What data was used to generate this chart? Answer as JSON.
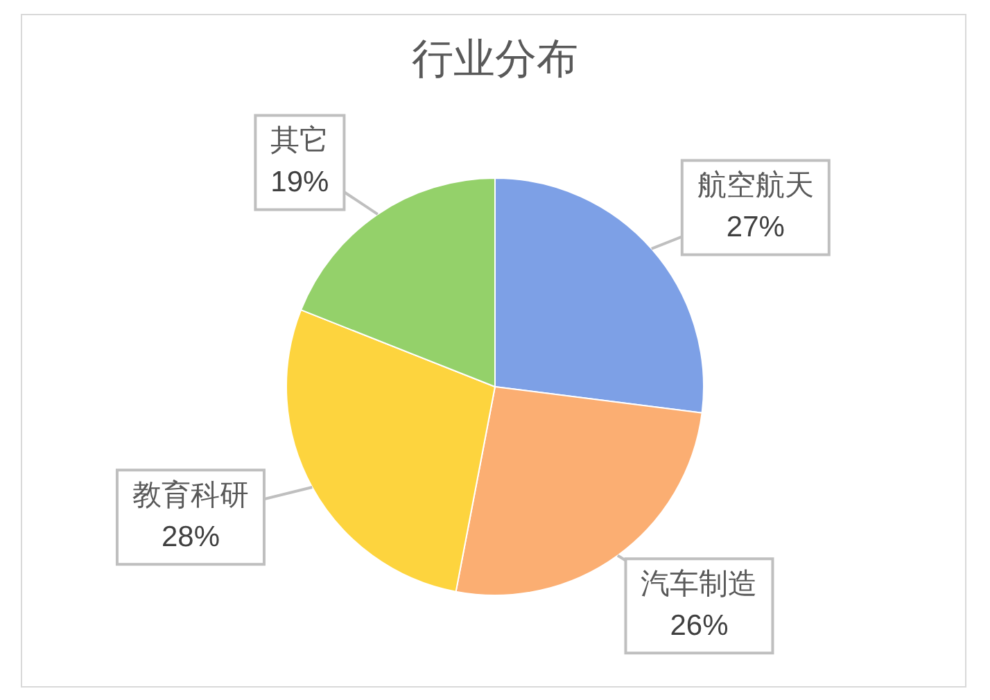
{
  "chart_data": {
    "type": "pie",
    "title": "行业分布",
    "categories": [
      "航空航天",
      "汽车制造",
      "教育科研",
      "其它"
    ],
    "values": [
      27,
      26,
      28,
      19
    ],
    "colors": [
      "#7da0e6",
      "#fbae72",
      "#fdd43e",
      "#94d16a"
    ],
    "value_labels": [
      "27%",
      "26%",
      "28%",
      "19%"
    ]
  }
}
